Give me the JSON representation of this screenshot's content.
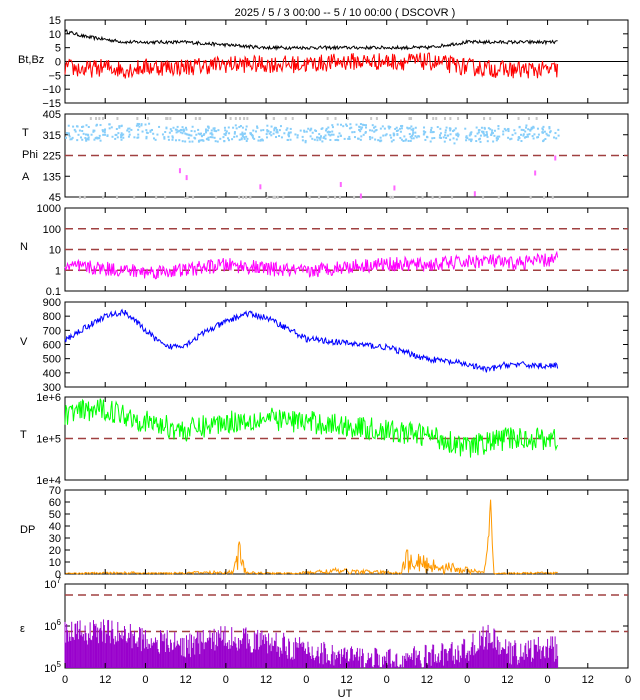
{
  "title": "2025  /  5  /  3    00:00  --   5  / 10    00:00 ( DSCOVR )",
  "xlabel": "UT",
  "x_tick_labels": [
    "0",
    "12",
    "0",
    "12",
    "0",
    "12",
    "0",
    "12",
    "0",
    "12",
    "0",
    "12",
    "0",
    "12",
    "0"
  ],
  "colors": {
    "bt": "#000000",
    "bz": "#ff0000",
    "theta_phi": "#87cefa",
    "phi_alt": "#c8c8c8",
    "angle_pts": "#ff66ff",
    "density": "#ff00ff",
    "speed": "#0000ff",
    "temperature": "#00ff00",
    "dp": "#ff9900",
    "epsilon": "#9900cc",
    "ref_line": "#a04040"
  },
  "chart_data": [
    {
      "id": "btbz",
      "type": "line",
      "ylabel": "Bt,Bz",
      "y_tick_labels": [
        "15",
        "10",
        "5",
        "0",
        "−5",
        "−10",
        "−15"
      ],
      "ylim": [
        -15,
        15
      ],
      "series": [
        {
          "key": "bt",
          "x": [
            0,
            6,
            12,
            18,
            24,
            30,
            36,
            48,
            60,
            72,
            84,
            96,
            108,
            114,
            120,
            132,
            144,
            150,
            156
          ],
          "values": [
            11,
            9,
            8,
            7,
            7,
            7,
            7,
            6,
            5,
            5,
            5,
            5,
            5,
            6,
            7,
            7,
            7,
            7,
            8
          ]
        },
        {
          "key": "bz",
          "x": [
            0,
            6,
            12,
            18,
            24,
            30,
            36,
            48,
            60,
            72,
            84,
            96,
            108,
            114,
            120,
            132,
            144,
            150,
            156
          ],
          "values": [
            -2,
            -3,
            -2,
            -3,
            -2,
            -2,
            -2,
            -1,
            -1,
            -1,
            0,
            0,
            0,
            -1,
            -2,
            -3,
            -3,
            -3,
            -3
          ]
        }
      ]
    },
    {
      "id": "angles",
      "type": "scatter",
      "ylabel_lines": [
        "T",
        "Phi",
        "A"
      ],
      "y_tick_labels": [
        "405",
        "315",
        "225",
        "135",
        "45"
      ],
      "ylim": [
        45,
        405
      ],
      "ref_lines": [
        225
      ],
      "series": [
        {
          "key": "theta_phi",
          "x": [
            0,
            12,
            24,
            36,
            48,
            60,
            72,
            84,
            96,
            108,
            120,
            132,
            144,
            156
          ],
          "values": [
            320,
            325,
            330,
            315,
            320,
            325,
            310,
            330,
            320,
            315,
            310,
            325,
            315,
            318
          ]
        },
        {
          "key": "angle_pts",
          "x": [
            34,
            36,
            58,
            82,
            88,
            98,
            122,
            140,
            146
          ],
          "values": [
            170,
            140,
            100,
            110,
            60,
            95,
            70,
            160,
            225
          ]
        }
      ]
    },
    {
      "id": "density",
      "type": "line",
      "ylabel": "N",
      "scale": "log",
      "y_tick_labels": [
        "1000",
        "100",
        "10",
        "1",
        "0.1"
      ],
      "ylim": [
        0.1,
        1000
      ],
      "ref_lines": [
        1,
        10,
        100
      ],
      "series": [
        {
          "key": "density",
          "x": [
            0,
            12,
            24,
            36,
            48,
            60,
            72,
            84,
            96,
            108,
            120,
            126,
            132,
            144,
            156
          ],
          "values": [
            1.5,
            1.2,
            0.8,
            1.0,
            1.8,
            1.2,
            0.8,
            1.5,
            2.0,
            1.8,
            2.5,
            3.0,
            2.0,
            3.0,
            5.0
          ]
        }
      ]
    },
    {
      "id": "speed",
      "type": "line",
      "ylabel": "V",
      "y_tick_labels": [
        "900",
        "800",
        "700",
        "600",
        "500",
        "400",
        "300"
      ],
      "ylim": [
        300,
        900
      ],
      "series": [
        {
          "key": "speed",
          "x": [
            0,
            6,
            12,
            18,
            24,
            30,
            36,
            42,
            48,
            54,
            60,
            66,
            72,
            84,
            96,
            108,
            120,
            126,
            132,
            144,
            156
          ],
          "values": [
            630,
            720,
            800,
            830,
            700,
            580,
            600,
            690,
            760,
            820,
            790,
            720,
            640,
            610,
            580,
            500,
            460,
            420,
            460,
            450,
            440
          ]
        }
      ]
    },
    {
      "id": "temperature",
      "type": "line",
      "ylabel": "T",
      "scale": "log",
      "y_tick_labels": [
        "1e+6",
        "1e+5",
        "1e+4"
      ],
      "ylim": [
        10000,
        1000000
      ],
      "ref_lines": [
        100000
      ],
      "series": [
        {
          "key": "temperature",
          "x": [
            0,
            12,
            24,
            36,
            48,
            60,
            72,
            84,
            96,
            108,
            120,
            132,
            144,
            156
          ],
          "values": [
            400000,
            500000,
            250000,
            150000,
            250000,
            300000,
            250000,
            200000,
            150000,
            120000,
            60000,
            100000,
            100000,
            80000
          ]
        }
      ]
    },
    {
      "id": "dp",
      "type": "line",
      "ylabel": "DP",
      "y_tick_labels": [
        "70",
        "60",
        "50",
        "40",
        "30",
        "20",
        "10",
        "0"
      ],
      "ylim": [
        0,
        70
      ],
      "series": [
        {
          "key": "dp",
          "x": [
            0,
            20,
            24,
            50,
            52,
            54,
            68,
            80,
            100,
            102,
            125,
            126,
            127,
            128,
            150,
            156
          ],
          "values": [
            1,
            2,
            1,
            3,
            27,
            2,
            1,
            5,
            2,
            20,
            2,
            20,
            62,
            1,
            2,
            3
          ]
        }
      ]
    },
    {
      "id": "epsilon",
      "type": "area",
      "ylabel": "ε",
      "scale": "log",
      "y_tick_labels": [
        "10^7",
        "10^6",
        "10^5"
      ],
      "ylim": [
        100000,
        20000000
      ],
      "ref_lines": [
        1000000,
        10000000
      ],
      "series": [
        {
          "key": "epsilon",
          "x": [
            0,
            12,
            24,
            36,
            48,
            60,
            72,
            84,
            96,
            108,
            120,
            126,
            132,
            144,
            156
          ],
          "values": [
            900000,
            1000000,
            600000,
            400000,
            700000,
            500000,
            300000,
            200000,
            150000,
            200000,
            300000,
            700000,
            250000,
            350000,
            250000
          ]
        }
      ]
    }
  ]
}
